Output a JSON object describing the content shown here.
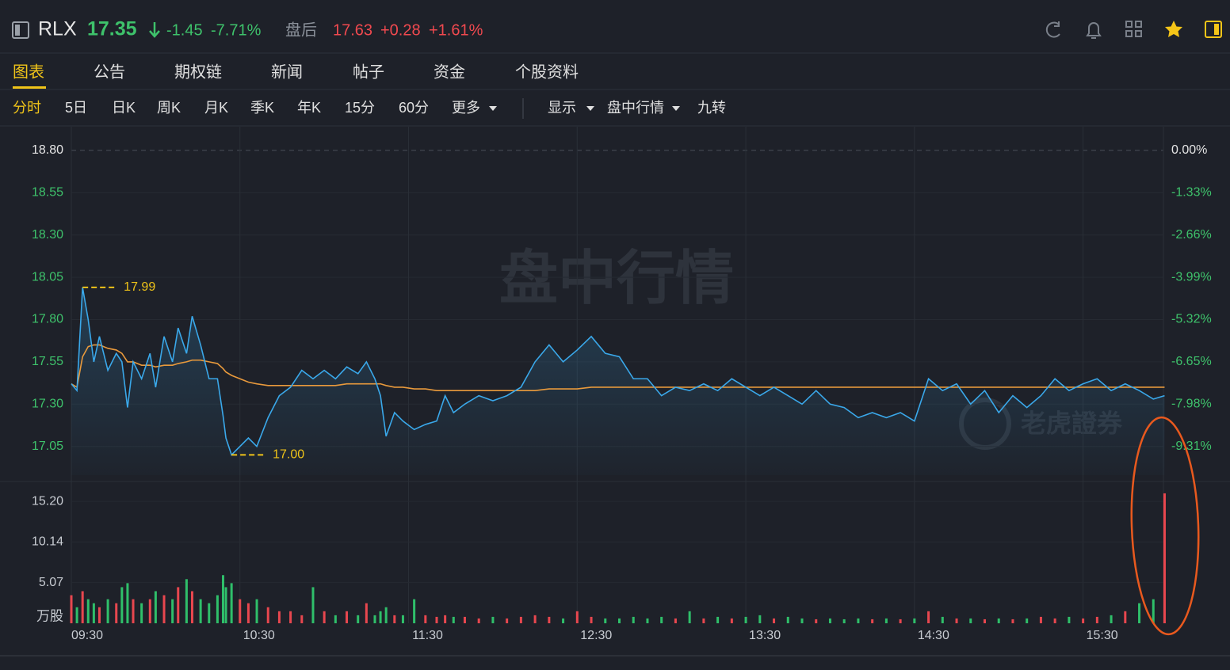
{
  "header": {
    "symbol": "RLX",
    "price": "17.35",
    "change": "-1.45",
    "change_pct": "-7.71%",
    "after_hours_label": "盘后",
    "after_hours_price": "17.63",
    "after_hours_change": "+0.28",
    "after_hours_pct": "+1.61%"
  },
  "tabs": [
    "图表",
    "公告",
    "期权链",
    "新闻",
    "帖子",
    "资金",
    "个股资料"
  ],
  "periods": [
    "分时",
    "5日",
    "日K",
    "周K",
    "月K",
    "季K",
    "年K",
    "15分",
    "60分",
    "更多"
  ],
  "options": [
    "显示",
    "盘中行情",
    "九转"
  ],
  "chart_data": {
    "type": "line",
    "watermark": "盘中行情",
    "watermark_brand": "老虎證券",
    "x": [
      "09:30",
      "09:32",
      "09:34",
      "09:36",
      "09:38",
      "09:40",
      "09:43",
      "09:46",
      "09:48",
      "09:50",
      "09:52",
      "09:55",
      "09:58",
      "10:00",
      "10:03",
      "10:06",
      "10:08",
      "10:11",
      "10:13",
      "10:16",
      "10:19",
      "10:22",
      "10:24",
      "10:25",
      "10:27",
      "10:30",
      "10:33",
      "10:36",
      "10:40",
      "10:44",
      "10:48",
      "10:52",
      "10:56",
      "11:00",
      "11:04",
      "11:08",
      "11:12",
      "11:15",
      "11:18",
      "11:20",
      "11:22",
      "11:25",
      "11:28",
      "11:32",
      "11:36",
      "11:40",
      "11:43",
      "11:46",
      "11:50",
      "11:55",
      "12:00",
      "12:05",
      "12:10",
      "12:15",
      "12:20",
      "12:25",
      "12:30",
      "12:35",
      "12:40",
      "12:45",
      "12:50",
      "12:55",
      "13:00",
      "13:05",
      "13:10",
      "13:15",
      "13:20",
      "13:25",
      "13:30",
      "13:35",
      "13:40",
      "13:45",
      "13:50",
      "13:55",
      "14:00",
      "14:05",
      "14:10",
      "14:15",
      "14:20",
      "14:25",
      "14:30",
      "14:35",
      "14:40",
      "14:45",
      "14:50",
      "14:55",
      "15:00",
      "15:05",
      "15:10",
      "15:15",
      "15:20",
      "15:25",
      "15:30",
      "15:35",
      "15:40",
      "15:45",
      "15:50",
      "15:55",
      "15:59"
    ],
    "xlim": [
      "09:30",
      "16:00"
    ],
    "xticks": [
      "09:30",
      "10:30",
      "11:30",
      "12:30",
      "13:30",
      "14:30",
      "15:30"
    ],
    "series": [
      {
        "color": "#3aa8ea",
        "values": [
          17.42,
          17.38,
          17.99,
          17.8,
          17.55,
          17.7,
          17.5,
          17.6,
          17.55,
          17.28,
          17.55,
          17.45,
          17.6,
          17.4,
          17.7,
          17.55,
          17.75,
          17.6,
          17.82,
          17.65,
          17.45,
          17.45,
          17.23,
          17.1,
          17.0,
          17.05,
          17.1,
          17.05,
          17.22,
          17.35,
          17.4,
          17.5,
          17.45,
          17.5,
          17.45,
          17.52,
          17.48,
          17.55,
          17.45,
          17.35,
          17.11,
          17.25,
          17.2,
          17.15,
          17.18,
          17.2,
          17.35,
          17.25,
          17.3,
          17.35,
          17.32,
          17.35,
          17.4,
          17.55,
          17.65,
          17.55,
          17.62,
          17.7,
          17.6,
          17.58,
          17.45,
          17.45,
          17.35,
          17.4,
          17.38,
          17.42,
          17.38,
          17.45,
          17.4,
          17.35,
          17.4,
          17.35,
          17.3,
          17.38,
          17.3,
          17.28,
          17.22,
          17.25,
          17.22,
          17.25,
          17.2,
          17.45,
          17.38,
          17.42,
          17.3,
          17.38,
          17.25,
          17.35,
          17.28,
          17.35,
          17.45,
          17.38,
          17.42,
          17.45,
          17.38,
          17.42,
          17.38,
          17.33,
          17.35
        ]
      },
      {
        "color": "#e99a3c",
        "values": [
          17.42,
          17.4,
          17.58,
          17.64,
          17.65,
          17.65,
          17.63,
          17.62,
          17.6,
          17.55,
          17.55,
          17.53,
          17.53,
          17.52,
          17.53,
          17.53,
          17.54,
          17.55,
          17.56,
          17.56,
          17.55,
          17.54,
          17.51,
          17.49,
          17.47,
          17.45,
          17.43,
          17.42,
          17.41,
          17.41,
          17.41,
          17.41,
          17.41,
          17.41,
          17.41,
          17.42,
          17.42,
          17.42,
          17.42,
          17.42,
          17.41,
          17.4,
          17.4,
          17.39,
          17.39,
          17.38,
          17.38,
          17.38,
          17.38,
          17.38,
          17.38,
          17.38,
          17.38,
          17.38,
          17.39,
          17.39,
          17.39,
          17.4,
          17.4,
          17.4,
          17.4,
          17.4,
          17.4,
          17.4,
          17.4,
          17.4,
          17.4,
          17.4,
          17.4,
          17.4,
          17.4,
          17.4,
          17.4,
          17.4,
          17.4,
          17.4,
          17.4,
          17.4,
          17.4,
          17.4,
          17.4,
          17.4,
          17.4,
          17.4,
          17.4,
          17.4,
          17.4,
          17.4,
          17.4,
          17.4,
          17.4,
          17.4,
          17.4,
          17.4,
          17.4,
          17.4,
          17.4,
          17.4,
          17.4
        ]
      }
    ],
    "ylim": [
      16.88,
      18.94
    ],
    "yticks": [
      {
        "value": 18.8,
        "label": "18.80"
      },
      18.55,
      {
        "value": 18.3,
        "label": "18.30"
      },
      18.05,
      {
        "value": 17.8,
        "label": "17.80"
      },
      17.55,
      {
        "value": 17.3,
        "label": "17.30"
      },
      17.05
    ],
    "y2lim": [
      -10.21,
      0.74
    ],
    "y2ticks": [
      {
        "value": 0,
        "label": "0.00%"
      },
      {
        "value": -1.33,
        "label": "-1.33%"
      },
      {
        "value": -2.66,
        "label": "-2.66%"
      },
      {
        "value": -3.99,
        "label": "-3.99%"
      },
      {
        "value": -5.32,
        "label": "-5.32%"
      },
      {
        "value": -6.65,
        "label": "-6.65%"
      },
      {
        "value": -7.98,
        "label": "-7.98%"
      },
      {
        "value": -9.31,
        "label": "-9.31%"
      }
    ],
    "annotations": [
      {
        "x": "09:34",
        "value": 17.99,
        "label": "17.99"
      },
      {
        "x": "10:27",
        "value": 17,
        "label": "17.00"
      }
    ],
    "up_color": "#e8474f",
    "down_color": "#2fbf6a",
    "neutral_color": "#e0e0e0",
    "volume": {
      "unit": "万股",
      "ylim": [
        0,
        16.49
      ],
      "yticks": [
        {
          "value": 15.2,
          "label": "15.20"
        },
        10.14,
        5.07
      ],
      "values": [
        3.5,
        2.0,
        4.0,
        3.0,
        2.5,
        2.0,
        3.0,
        2.5,
        4.5,
        5.0,
        3.0,
        2.5,
        3.0,
        4.0,
        3.5,
        3.0,
        4.5,
        5.5,
        4.0,
        3.0,
        2.5,
        3.5,
        6.0,
        4.5,
        5.0,
        3.0,
        2.5,
        3.0,
        2.0,
        1.5,
        1.5,
        1.0,
        4.5,
        1.5,
        1.0,
        1.5,
        1.0,
        2.5,
        1.0,
        1.5,
        2.0,
        1.0,
        1.0,
        3.0,
        1.0,
        0.8,
        1.0,
        0.8,
        0.8,
        0.6,
        0.8,
        0.6,
        0.8,
        1.0,
        0.8,
        0.6,
        1.5,
        0.8,
        0.6,
        0.6,
        0.8,
        0.6,
        0.8,
        0.6,
        1.5,
        0.6,
        0.8,
        0.6,
        0.8,
        1.0,
        0.6,
        0.8,
        0.6,
        0.5,
        0.6,
        0.5,
        0.6,
        0.5,
        0.6,
        0.5,
        0.6,
        1.5,
        0.8,
        0.6,
        0.6,
        0.5,
        0.6,
        0.5,
        0.6,
        0.8,
        0.6,
        0.8,
        0.6,
        0.8,
        1.0,
        1.5,
        2.5,
        3.0,
        16.2
      ]
    }
  }
}
